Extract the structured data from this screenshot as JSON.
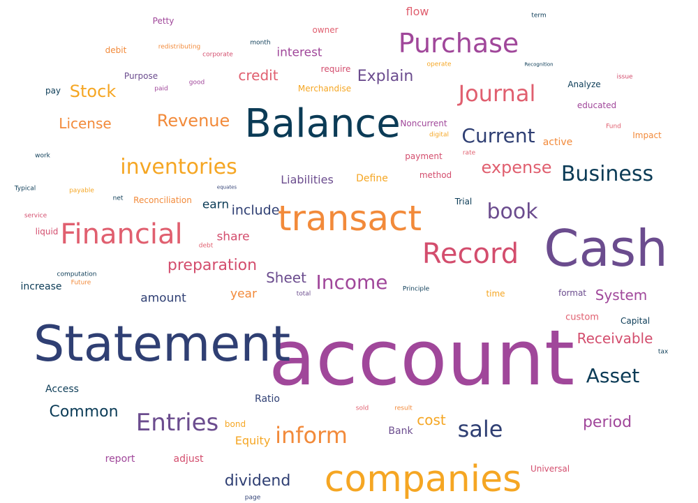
{
  "palette": {
    "navy": "#2f3f73",
    "teal": "#0b3b56",
    "purple": "#6b4c8e",
    "magenta": "#a0479a",
    "rose": "#d34d6d",
    "pink": "#e05f6f",
    "orange": "#f28a3a",
    "gold": "#f5a623"
  },
  "words": [
    {
      "text": "account",
      "color": "#a0479a"
    },
    {
      "text": "Statement",
      "color": "#2f3f73"
    },
    {
      "text": "Cash",
      "color": "#6b4c8e"
    },
    {
      "text": "Balance",
      "color": "#0b3b56"
    },
    {
      "text": "companies",
      "color": "#f5a623"
    },
    {
      "text": "transact",
      "color": "#f28a3a"
    },
    {
      "text": "Financial",
      "color": "#e05f6f"
    },
    {
      "text": "Record",
      "color": "#d34d6d"
    },
    {
      "text": "Purchase",
      "color": "#a0479a"
    },
    {
      "text": "Journal",
      "color": "#e05f6f"
    },
    {
      "text": "Entries",
      "color": "#6b4c8e"
    },
    {
      "text": "inventories",
      "color": "#f5a623"
    },
    {
      "text": "Business",
      "color": "#0b3b56"
    },
    {
      "text": "Income",
      "color": "#a0479a"
    },
    {
      "text": "inform",
      "color": "#f28a3a"
    },
    {
      "text": "sale",
      "color": "#2f3f73"
    },
    {
      "text": "book",
      "color": "#6b4c8e"
    },
    {
      "text": "Current",
      "color": "#2f3f73"
    },
    {
      "text": "Asset",
      "color": "#0b3b56"
    },
    {
      "text": "Revenue",
      "color": "#f28a3a"
    },
    {
      "text": "Stock",
      "color": "#f5a623"
    },
    {
      "text": "expense",
      "color": "#e05f6f"
    },
    {
      "text": "Common",
      "color": "#0b3b56"
    },
    {
      "text": "period",
      "color": "#a0479a"
    },
    {
      "text": "Explain",
      "color": "#6b4c8e"
    },
    {
      "text": "preparation",
      "color": "#d34d6d"
    },
    {
      "text": "dividend",
      "color": "#2f3f73"
    },
    {
      "text": "Sheet",
      "color": "#6b4c8e"
    },
    {
      "text": "credit",
      "color": "#e05f6f"
    },
    {
      "text": "License",
      "color": "#f28a3a"
    },
    {
      "text": "System",
      "color": "#a0479a"
    },
    {
      "text": "Receivable",
      "color": "#d34d6d"
    },
    {
      "text": "cost",
      "color": "#f5a623"
    },
    {
      "text": "include",
      "color": "#2f3f73"
    },
    {
      "text": "interest",
      "color": "#a0479a"
    },
    {
      "text": "earn",
      "color": "#0b3b56"
    },
    {
      "text": "share",
      "color": "#d34d6d"
    },
    {
      "text": "amount",
      "color": "#2f3f73"
    },
    {
      "text": "year",
      "color": "#f28a3a"
    },
    {
      "text": "Liabilities",
      "color": "#6b4c8e"
    },
    {
      "text": "Equity",
      "color": "#f5a623"
    },
    {
      "text": "flow",
      "color": "#e05f6f"
    },
    {
      "text": "active",
      "color": "#f28a3a"
    },
    {
      "text": "Define",
      "color": "#f5a623"
    },
    {
      "text": "adjust",
      "color": "#d34d6d"
    },
    {
      "text": "report",
      "color": "#a0479a"
    },
    {
      "text": "Bank",
      "color": "#6b4c8e"
    },
    {
      "text": "Ratio",
      "color": "#2f3f73"
    },
    {
      "text": "Access",
      "color": "#0b3b56"
    },
    {
      "text": "increase",
      "color": "#0b3b56"
    },
    {
      "text": "Noncurrent",
      "color": "#a0479a"
    },
    {
      "text": "payment",
      "color": "#d34d6d"
    },
    {
      "text": "method",
      "color": "#d34d6d"
    },
    {
      "text": "custom",
      "color": "#e05f6f"
    },
    {
      "text": "Merchandise",
      "color": "#f5a623"
    },
    {
      "text": "Purpose",
      "color": "#6b4c8e"
    },
    {
      "text": "Petty",
      "color": "#a0479a"
    },
    {
      "text": "Analyze",
      "color": "#0b3b56"
    },
    {
      "text": "educated",
      "color": "#a0479a"
    },
    {
      "text": "Capital",
      "color": "#0b3b56"
    },
    {
      "text": "format",
      "color": "#6b4c8e"
    },
    {
      "text": "Trial",
      "color": "#0b3b56"
    },
    {
      "text": "Impact",
      "color": "#f28a3a"
    },
    {
      "text": "bond",
      "color": "#f5a623"
    },
    {
      "text": "Reconciliation",
      "color": "#f28a3a"
    },
    {
      "text": "Universal",
      "color": "#d34d6d"
    },
    {
      "text": "time",
      "color": "#f5a623"
    },
    {
      "text": "require",
      "color": "#d34d6d"
    },
    {
      "text": "owner",
      "color": "#e05f6f"
    },
    {
      "text": "debit",
      "color": "#f28a3a"
    },
    {
      "text": "pay",
      "color": "#0b3b56"
    },
    {
      "text": "liquid",
      "color": "#d34d6d"
    },
    {
      "text": "month",
      "color": "#0b3b56"
    },
    {
      "text": "redistributing",
      "color": "#f28a3a"
    },
    {
      "text": "corporate",
      "color": "#d34d6d"
    },
    {
      "text": "good",
      "color": "#a0479a"
    },
    {
      "text": "paid",
      "color": "#a0479a"
    },
    {
      "text": "operate",
      "color": "#f5a623"
    },
    {
      "text": "digital",
      "color": "#f5a623"
    },
    {
      "text": "rate",
      "color": "#e05f6f"
    },
    {
      "text": "Fund",
      "color": "#e05f6f"
    },
    {
      "text": "issue",
      "color": "#d34d6d"
    },
    {
      "text": "term",
      "color": "#0b3b56"
    },
    {
      "text": "Recognition",
      "color": "#0b3b56"
    },
    {
      "text": "work",
      "color": "#0b3b56"
    },
    {
      "text": "Typical",
      "color": "#0b3b56"
    },
    {
      "text": "payable",
      "color": "#f5a623"
    },
    {
      "text": "service",
      "color": "#d34d6d"
    },
    {
      "text": "net",
      "color": "#0b3b56"
    },
    {
      "text": "equates",
      "color": "#2f3f73"
    },
    {
      "text": "debt",
      "color": "#e05f6f"
    },
    {
      "text": "computation",
      "color": "#0b3b56"
    },
    {
      "text": "Future",
      "color": "#f28a3a"
    },
    {
      "text": "total",
      "color": "#6b4c8e"
    },
    {
      "text": "Principle",
      "color": "#0b3b56"
    },
    {
      "text": "sold",
      "color": "#e05f6f"
    },
    {
      "text": "result",
      "color": "#f28a3a"
    },
    {
      "text": "tax",
      "color": "#0b3b56"
    },
    {
      "text": "page",
      "color": "#2f3f73"
    }
  ]
}
